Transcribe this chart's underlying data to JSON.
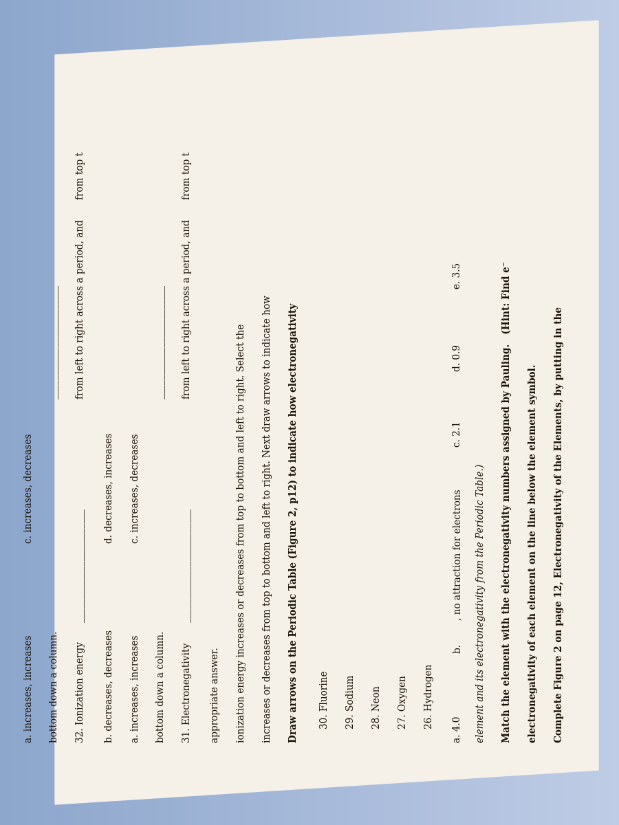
{
  "bg_left_color": "#8fa8c8",
  "bg_right_color": "#c5d5e8",
  "page_color": "#f0ece0",
  "text_color": "#1a1205",
  "rotation": 90,
  "title_bold1": "Complete Figure 2 on page 12, Electronegativity of the Elements, by putting in the",
  "title_bold2": "electronegativity of each element on the line below the element symbol.",
  "title_bold3": "Match the element with the electronegativity numbers assigned by Pauling.  (Hint: Find e⁻",
  "title_italic1": "element and its electronegativity from the Periodic Table.)",
  "opt_a": "a. 4.0",
  "opt_b": "b.        , no attraction for electrons",
  "opt_c": "c. 2.1",
  "opt_d": "d. 0.9",
  "opt_e": "e. 3.5",
  "items": [
    "26. Hydrogen",
    "27. Oxygen",
    "28. Neon",
    "29. Sodium",
    "30. Fluorine"
  ],
  "draw_bold": "Draw arrows on the Periodic Table (Figure 2, p12) to indicate how electronegativity",
  "draw1": "increases or decreases from top to bottom and left to right. Next draw arrows to indicate how",
  "draw2": "ionization energy increases or decreases from top to bottom and left to right. Select the",
  "draw3": "appropriate answer.",
  "q31_label": "31. Electronegativity",
  "q31_from_lr": "from left to right across a period, and",
  "q31_from_tb": "from top t",
  "q31_bottom": "bottom down a column.",
  "q31_a": "a. increases, increases",
  "q31_b": "b. decreases, decreases",
  "q31_c": "c. increases, decreases",
  "q31_d": "d. decreases, increases",
  "q32_label": "32. Ionization energy",
  "q32_from_lr": "from left to right across a period, and",
  "q32_from_tb": "from top t",
  "q32_bottom": "bottom down a column.",
  "q32_c": "c. increases, decreases",
  "q32_a": "a. increases, increases"
}
